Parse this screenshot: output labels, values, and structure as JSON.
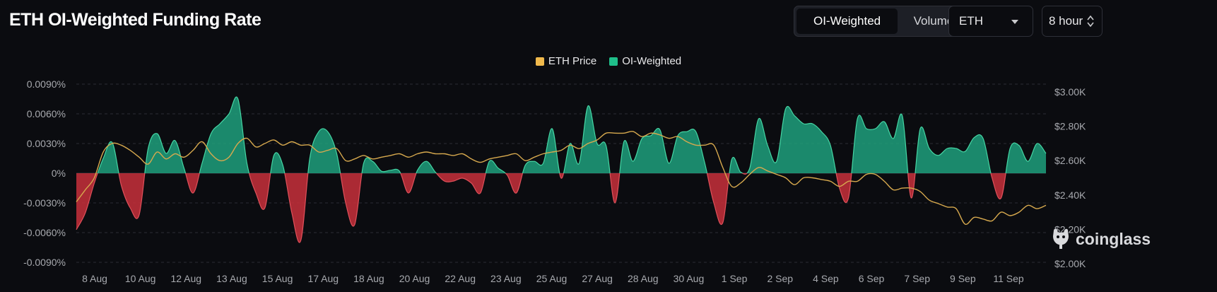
{
  "header": {
    "title": "ETH OI-Weighted Funding Rate",
    "tabs": [
      {
        "label": "OI-Weighted",
        "active": true
      },
      {
        "label": "Volume-Weighted",
        "active": false
      }
    ],
    "asset_select": {
      "value": "ETH"
    },
    "interval_select": {
      "value": "8 hour"
    }
  },
  "legend": [
    {
      "label": "ETH Price",
      "color": "#f0b94c"
    },
    {
      "label": "OI-Weighted",
      "color": "#1fbf8a"
    }
  ],
  "watermark": {
    "text": "coinglass",
    "icon": "coinglass-logo-icon"
  },
  "colors": {
    "positive_fill": "#1fa07c",
    "negative_fill": "#c8303b",
    "price_line": "#d7a94e",
    "grid": "#2b2d33",
    "axis_text": "#a7a9ae"
  },
  "chart_data": {
    "type": "area",
    "title": "ETH OI-Weighted Funding Rate",
    "left_axis": {
      "unit": "%",
      "min": -0.009,
      "max": 0.009,
      "ticks": [
        0.009,
        0.006,
        0.003,
        0,
        -0.003,
        -0.006,
        -0.009
      ],
      "tick_labels": [
        "0.0090%",
        "0.0060%",
        "0.0030%",
        "0%",
        "-0.0030%",
        "-0.0060%",
        "-0.0090%"
      ]
    },
    "right_axis": {
      "unit": "USD",
      "min": 2000,
      "max": 3000,
      "ticks": [
        3000,
        2800,
        2600,
        2400,
        2200,
        2000
      ],
      "tick_labels": [
        "$3.00K",
        "$2.80K",
        "$2.60K",
        "$2.40K",
        "$2.20K",
        "$2.00K"
      ]
    },
    "x_labels": [
      "8 Aug",
      "10 Aug",
      "12 Aug",
      "13 Aug",
      "15 Aug",
      "17 Aug",
      "18 Aug",
      "20 Aug",
      "22 Aug",
      "23 Aug",
      "25 Aug",
      "27 Aug",
      "28 Aug",
      "30 Aug",
      "1 Sep",
      "2 Sep",
      "4 Sep",
      "6 Sep",
      "7 Sep",
      "9 Sep",
      "11 Sep"
    ],
    "x_range": [
      0,
      108
    ],
    "series": [
      {
        "name": "OI-Weighted",
        "axis": "left",
        "points": [
          [
            0,
            -0.0057
          ],
          [
            1,
            -0.004
          ],
          [
            2,
            -0.001
          ],
          [
            3,
            0.0015
          ],
          [
            4,
            0.0031
          ],
          [
            5,
            -0.0012
          ],
          [
            6,
            -0.0035
          ],
          [
            7,
            -0.0042
          ],
          [
            8,
            0.0025
          ],
          [
            9,
            0.004
          ],
          [
            10,
            0.002
          ],
          [
            11,
            0.0033
          ],
          [
            12,
            0.0005
          ],
          [
            13,
            -0.002
          ],
          [
            14,
            0.001
          ],
          [
            15,
            0.004
          ],
          [
            16,
            0.005
          ],
          [
            17,
            0.006
          ],
          [
            18,
            0.0075
          ],
          [
            19,
            0.001
          ],
          [
            20,
            -0.002
          ],
          [
            21,
            -0.0035
          ],
          [
            22,
            0.0018
          ],
          [
            23,
            0.0008
          ],
          [
            24,
            -0.004
          ],
          [
            25,
            -0.0068
          ],
          [
            26,
            0.0015
          ],
          [
            27,
            0.0042
          ],
          [
            28,
            0.0042
          ],
          [
            29,
            0.002
          ],
          [
            30,
            -0.003
          ],
          [
            31,
            -0.0052
          ],
          [
            32,
            0.001
          ],
          [
            33,
            0.0012
          ],
          [
            34,
            0.0002
          ],
          [
            35,
            0.0003
          ],
          [
            36,
            0.0002
          ],
          [
            37,
            -0.002
          ],
          [
            38,
            0.0003
          ],
          [
            39,
            0.0012
          ],
          [
            40,
            0.0001
          ],
          [
            41,
            -0.0008
          ],
          [
            42,
            -0.0008
          ],
          [
            43,
            -0.0005
          ],
          [
            44,
            -0.001
          ],
          [
            45,
            -0.002
          ],
          [
            46,
            0.0012
          ],
          [
            47,
            0.0005
          ],
          [
            48,
            -0.0002
          ],
          [
            49,
            -0.002
          ],
          [
            50,
            0.0008
          ],
          [
            51,
            0.0012
          ],
          [
            52,
            0.001
          ],
          [
            53,
            0.0045
          ],
          [
            54,
            -0.0005
          ],
          [
            55,
            0.003
          ],
          [
            56,
            0.001
          ],
          [
            57,
            0.0068
          ],
          [
            58,
            0.003
          ],
          [
            59,
            0.0028
          ],
          [
            60,
            -0.003
          ],
          [
            61,
            0.0032
          ],
          [
            62,
            0.0012
          ],
          [
            63,
            0.0035
          ],
          [
            64,
            0.0038
          ],
          [
            65,
            0.0044
          ],
          [
            66,
            0.001
          ],
          [
            67,
            0.0038
          ],
          [
            68,
            0.0042
          ],
          [
            69,
            0.0042
          ],
          [
            70,
            0.001
          ],
          [
            71,
            -0.003
          ],
          [
            72,
            -0.005
          ],
          [
            73,
            0.0014
          ],
          [
            74,
            0.0001
          ],
          [
            75,
            0.0005
          ],
          [
            76,
            0.0055
          ],
          [
            77,
            0.0028
          ],
          [
            78,
            0.0012
          ],
          [
            79,
            0.0065
          ],
          [
            80,
            0.0058
          ],
          [
            81,
            0.005
          ],
          [
            82,
            0.005
          ],
          [
            83,
            0.0042
          ],
          [
            84,
            0.0028
          ],
          [
            85,
            -0.0015
          ],
          [
            86,
            -0.0025
          ],
          [
            87,
            0.0055
          ],
          [
            88,
            0.0045
          ],
          [
            89,
            0.0045
          ],
          [
            90,
            0.0052
          ],
          [
            91,
            0.0035
          ],
          [
            92,
            0.0058
          ],
          [
            93,
            -0.0025
          ],
          [
            94,
            0.0045
          ],
          [
            95,
            0.0025
          ],
          [
            96,
            0.0018
          ],
          [
            97,
            0.0025
          ],
          [
            98,
            0.0025
          ],
          [
            99,
            0.0022
          ],
          [
            100,
            0.0036
          ],
          [
            101,
            0.0035
          ],
          [
            102,
            -0.0005
          ],
          [
            103,
            -0.0025
          ],
          [
            104,
            0.0025
          ],
          [
            105,
            0.0028
          ],
          [
            106,
            0.0012
          ],
          [
            107,
            0.003
          ],
          [
            108,
            0.002
          ]
        ]
      },
      {
        "name": "ETH Price",
        "axis": "right",
        "points": [
          [
            0,
            2360
          ],
          [
            1,
            2430
          ],
          [
            2,
            2500
          ],
          [
            3,
            2650
          ],
          [
            4,
            2700
          ],
          [
            5,
            2690
          ],
          [
            6,
            2660
          ],
          [
            7,
            2620
          ],
          [
            8,
            2580
          ],
          [
            9,
            2650
          ],
          [
            10,
            2610
          ],
          [
            11,
            2640
          ],
          [
            12,
            2620
          ],
          [
            13,
            2660
          ],
          [
            14,
            2710
          ],
          [
            15,
            2640
          ],
          [
            16,
            2600
          ],
          [
            17,
            2620
          ],
          [
            18,
            2700
          ],
          [
            19,
            2730
          ],
          [
            20,
            2680
          ],
          [
            21,
            2700
          ],
          [
            22,
            2720
          ],
          [
            23,
            2690
          ],
          [
            24,
            2710
          ],
          [
            25,
            2690
          ],
          [
            26,
            2690
          ],
          [
            27,
            2650
          ],
          [
            28,
            2660
          ],
          [
            29,
            2670
          ],
          [
            30,
            2600
          ],
          [
            31,
            2610
          ],
          [
            32,
            2630
          ],
          [
            33,
            2610
          ],
          [
            34,
            2620
          ],
          [
            35,
            2630
          ],
          [
            36,
            2640
          ],
          [
            37,
            2620
          ],
          [
            38,
            2640
          ],
          [
            39,
            2650
          ],
          [
            40,
            2640
          ],
          [
            41,
            2640
          ],
          [
            42,
            2630
          ],
          [
            43,
            2640
          ],
          [
            44,
            2610
          ],
          [
            45,
            2590
          ],
          [
            46,
            2610
          ],
          [
            47,
            2620
          ],
          [
            48,
            2630
          ],
          [
            49,
            2640
          ],
          [
            50,
            2600
          ],
          [
            51,
            2620
          ],
          [
            52,
            2640
          ],
          [
            53,
            2650
          ],
          [
            54,
            2660
          ],
          [
            55,
            2690
          ],
          [
            56,
            2670
          ],
          [
            57,
            2700
          ],
          [
            58,
            2720
          ],
          [
            59,
            2760
          ],
          [
            60,
            2760
          ],
          [
            61,
            2760
          ],
          [
            62,
            2770
          ],
          [
            63,
            2740
          ],
          [
            64,
            2760
          ],
          [
            65,
            2750
          ],
          [
            66,
            2730
          ],
          [
            67,
            2740
          ],
          [
            68,
            2710
          ],
          [
            69,
            2690
          ],
          [
            70,
            2690
          ],
          [
            71,
            2690
          ],
          [
            72,
            2560
          ],
          [
            73,
            2450
          ],
          [
            74,
            2470
          ],
          [
            75,
            2520
          ],
          [
            76,
            2560
          ],
          [
            77,
            2540
          ],
          [
            78,
            2520
          ],
          [
            79,
            2500
          ],
          [
            80,
            2460
          ],
          [
            81,
            2500
          ],
          [
            82,
            2500
          ],
          [
            83,
            2490
          ],
          [
            84,
            2480
          ],
          [
            85,
            2450
          ],
          [
            86,
            2480
          ],
          [
            87,
            2480
          ],
          [
            88,
            2520
          ],
          [
            89,
            2520
          ],
          [
            90,
            2480
          ],
          [
            91,
            2430
          ],
          [
            92,
            2440
          ],
          [
            93,
            2440
          ],
          [
            94,
            2420
          ],
          [
            95,
            2370
          ],
          [
            96,
            2350
          ],
          [
            97,
            2330
          ],
          [
            98,
            2320
          ],
          [
            99,
            2230
          ],
          [
            100,
            2270
          ],
          [
            101,
            2260
          ],
          [
            102,
            2250
          ],
          [
            103,
            2300
          ],
          [
            104,
            2280
          ],
          [
            105,
            2300
          ],
          [
            106,
            2340
          ],
          [
            107,
            2320
          ],
          [
            108,
            2340
          ]
        ]
      }
    ]
  }
}
